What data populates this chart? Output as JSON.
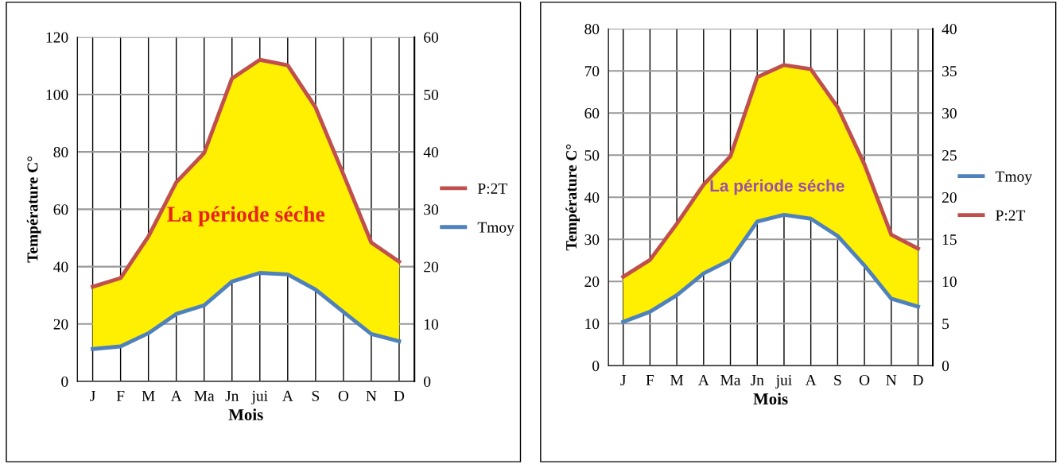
{
  "chart_data": [
    {
      "type": "line",
      "xlabel": "Mois",
      "ylabel": "Température C°",
      "categories": [
        "J",
        "F",
        "M",
        "A",
        "Ma",
        "Jn",
        "jui",
        "A",
        "S",
        "O",
        "N",
        "D"
      ],
      "series": [
        {
          "name": "P:2T",
          "color": "#c0504d",
          "values": [
            33.0,
            36.0,
            50.5,
            69.4,
            79.6,
            105.6,
            112.1,
            110.2,
            95.5,
            72.2,
            48.4,
            41.7
          ],
          "lower": [
            11.3,
            12.2,
            16.8,
            23.5,
            26.5,
            34.8,
            37.8,
            37.3,
            32.0,
            24.2,
            16.5,
            14.0
          ],
          "upper": [
            33.0,
            36.0,
            50.5,
            69.4,
            79.6,
            105.6,
            112.1,
            110.2,
            95.5,
            72.2,
            48.4,
            41.7
          ]
        },
        {
          "name": "Tmoy",
          "color": "#4f81bd",
          "values": [
            11.3,
            12.2,
            16.8,
            23.5,
            26.5,
            34.8,
            37.8,
            37.3,
            32.0,
            24.2,
            16.5,
            14.0
          ]
        }
      ],
      "ylim": [
        0,
        120
      ],
      "yticks": [
        0,
        20,
        40,
        60,
        80,
        100,
        120
      ],
      "y2lim": [
        0,
        60
      ],
      "y2ticks": [
        0,
        10,
        20,
        30,
        40,
        50,
        60
      ],
      "annotations": [
        "La période séche"
      ],
      "grid": true,
      "legend": "right",
      "marker": "none",
      "line_style": "solid"
    },
    {
      "type": "line",
      "xlabel": "Mois",
      "ylabel": "Température C°",
      "categories": [
        "J",
        "F",
        "M",
        "A",
        "Ma",
        "Jn",
        "jui",
        "A",
        "S",
        "O",
        "N",
        "D"
      ],
      "series": [
        {
          "name": "Tmoy",
          "color": "#4f81bd",
          "values": [
            10.4,
            12.8,
            16.7,
            21.9,
            25.1,
            34.2,
            35.8,
            34.9,
            30.8,
            23.8,
            15.9,
            14.0
          ]
        },
        {
          "name": "P:2T",
          "color": "#c0504d",
          "values": [
            21.1,
            25.1,
            33.7,
            43.0,
            49.7,
            68.5,
            71.4,
            70.4,
            61.4,
            47.8,
            31.1,
            27.8
          ],
          "lower": [
            10.4,
            12.8,
            16.7,
            21.9,
            25.1,
            34.2,
            35.8,
            34.9,
            30.8,
            23.8,
            15.9,
            14.0
          ],
          "upper": [
            21.1,
            25.1,
            33.7,
            43.0,
            49.7,
            68.5,
            71.4,
            70.4,
            61.4,
            47.8,
            31.1,
            27.8
          ]
        }
      ],
      "ylim": [
        0,
        80
      ],
      "yticks": [
        0,
        10,
        20,
        30,
        40,
        50,
        60,
        70,
        80
      ],
      "y2lim": [
        0,
        40
      ],
      "y2ticks": [
        0,
        5,
        10,
        15,
        20,
        25,
        30,
        35,
        40
      ],
      "annotations": [
        "La période séche"
      ],
      "grid": true,
      "legend": "right",
      "marker": "none",
      "line_style": "solid"
    }
  ]
}
